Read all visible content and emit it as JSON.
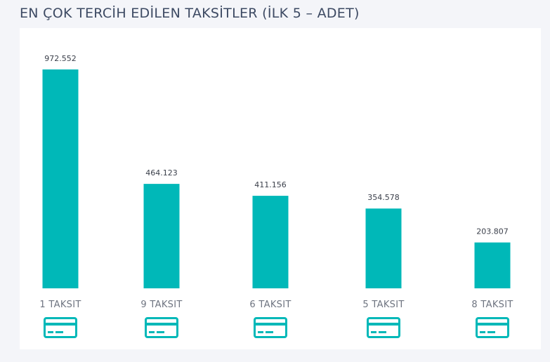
{
  "page": {
    "title": "EN ÇOK TERCİH EDİLEN TAKSİTLER (İLK 5 – ADET)"
  },
  "colors": {
    "bar": "#00b8b8",
    "icon": "#00b8b8"
  },
  "icon": "credit-card-icon",
  "chart_data": {
    "type": "bar",
    "title": "EN ÇOK TERCİH EDİLEN TAKSİTLER (İLK 5 – ADET)",
    "categories": [
      "1 TAKSIT",
      "9 TAKSIT",
      "6 TAKSIT",
      "5 TAKSIT",
      "8 TAKSIT"
    ],
    "values": [
      972552,
      464123,
      411156,
      354578,
      203807
    ],
    "value_labels": [
      "972.552",
      "464.123",
      "411.156",
      "354.578",
      "203.807"
    ],
    "xlabel": "",
    "ylabel": "",
    "ylim": [
      0,
      972552
    ],
    "grid": false,
    "legend": "none"
  }
}
